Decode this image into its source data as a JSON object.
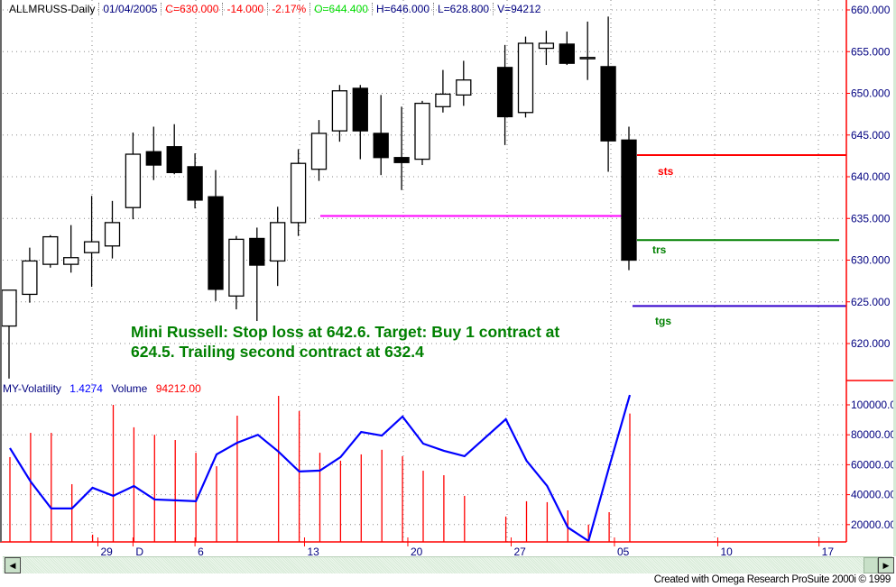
{
  "header": {
    "symbol": "ALLMRUSS-Daily",
    "date": "01/04/2005",
    "close": "C=630.000",
    "change": "-14.000",
    "change_pct": "-2.17%",
    "open": "O=644.400",
    "high": "H=646.000",
    "low": "L=628.800",
    "volume": "V=94212"
  },
  "subpanel": {
    "indicator_name": "MY-Volatility",
    "indicator_value": "1.4274",
    "volume_name": "Volume",
    "volume_value": "94212.00"
  },
  "annotation": {
    "line1": "Mini Russell: Stop loss at 642.6. Target: Buy 1 contract at",
    "line2": "624.5. Trailing second contract at 632.4"
  },
  "level_labels": {
    "sts": "sts",
    "trs": "trs",
    "tgs": "tgs"
  },
  "credit": "Created with Omega Research ProSuite 2000i © 1999",
  "colors": {
    "axis": "#ff0000",
    "axis_text": "#000080",
    "note": "#008000",
    "stop": "#ff0000",
    "trail": "#008000",
    "target": "#3300cc",
    "entry_line": "#ff00ff",
    "volume": "#ff0000",
    "volatility": "#0000ff",
    "open_text": "#00dd00"
  },
  "chart_data": [
    {
      "type": "candlestick",
      "ylim": [
        620,
        660
      ],
      "yticks": [
        "660.000",
        "655.000",
        "650.000",
        "645.000",
        "640.000",
        "635.000",
        "630.000",
        "625.000",
        "620.000"
      ],
      "xticks": [
        "29",
        "D",
        "6",
        "13",
        "20",
        "27",
        "05",
        "10",
        "17"
      ],
      "grid": true,
      "candles": [
        [
          622.1,
          626.4,
          615.8,
          626.4
        ],
        [
          625.9,
          631.5,
          624.9,
          629.9
        ],
        [
          629.5,
          633.0,
          629.1,
          632.8
        ],
        [
          629.5,
          634.2,
          628.5,
          630.3
        ],
        [
          630.9,
          637.7,
          626.8,
          632.2
        ],
        [
          631.7,
          637.1,
          630.2,
          634.5
        ],
        [
          636.3,
          645.3,
          634.9,
          642.7
        ],
        [
          643.0,
          646.0,
          639.6,
          641.4
        ],
        [
          643.6,
          646.3,
          640.3,
          640.5
        ],
        [
          641.2,
          642.8,
          636.2,
          637.2
        ],
        [
          637.6,
          640.8,
          625.1,
          626.5
        ],
        [
          625.7,
          632.9,
          624.1,
          632.5
        ],
        [
          632.6,
          633.9,
          622.7,
          629.4
        ],
        [
          629.9,
          636.4,
          626.9,
          634.5
        ],
        [
          634.5,
          643.3,
          632.9,
          641.6
        ],
        [
          640.9,
          646.8,
          639.5,
          645.2
        ],
        [
          645.5,
          651.0,
          644.2,
          650.3
        ],
        [
          650.6,
          651.0,
          642.1,
          645.5
        ],
        [
          645.2,
          649.8,
          640.2,
          642.3
        ],
        [
          642.3,
          648.4,
          638.4,
          641.7
        ],
        [
          642.1,
          649.1,
          641.4,
          648.8
        ],
        [
          648.4,
          652.8,
          647.7,
          649.9
        ],
        [
          649.8,
          653.9,
          648.5,
          651.6
        ],
        null,
        [
          653.1,
          655.8,
          643.8,
          647.2
        ],
        [
          647.7,
          656.8,
          647.1,
          656.0
        ],
        [
          655.4,
          657.5,
          653.4,
          656.0
        ],
        [
          655.9,
          657.4,
          653.4,
          653.6
        ],
        [
          654.3,
          658.6,
          651.6,
          654.3
        ],
        [
          653.2,
          659.2,
          640.6,
          644.3
        ],
        [
          644.4,
          646.0,
          628.8,
          630.0
        ]
      ],
      "candle_fields": [
        "open",
        "high",
        "low",
        "close"
      ],
      "levels": [
        {
          "label": "sts",
          "value": 642.6
        },
        {
          "label": "trs",
          "value": 632.4
        },
        {
          "label": "tgs",
          "value": 624.5
        },
        {
          "label": "",
          "value": 635.3
        }
      ]
    },
    {
      "type": "bar+line",
      "ylim": [
        8000,
        110000
      ],
      "yticks": [
        "100000.00",
        "80000.00",
        "60000.00",
        "40000.00",
        "20000.00"
      ],
      "series": [
        {
          "name": "Volume",
          "type": "bar",
          "values": [
            65100,
            81300,
            81300,
            47000,
            13300,
            100000,
            85000,
            80000,
            76500,
            68000,
            59000,
            92800,
            null,
            106000,
            95800,
            68000,
            62700,
            66900,
            70000,
            65700,
            56000,
            53000,
            39200,
            null,
            25400,
            35600,
            35000,
            29500,
            20000,
            28300,
            94212
          ]
        },
        {
          "name": "MY-Volatility",
          "type": "line",
          "values": [
            71100,
            48800,
            30800,
            30800,
            44600,
            39200,
            45800,
            36800,
            36200,
            35600,
            66900,
            74700,
            80000,
            68700,
            55500,
            56100,
            65100,
            81900,
            79500,
            92200,
            74100,
            69300,
            65700,
            null,
            90400,
            62700,
            45800,
            18100,
            9000,
            58500,
            106600
          ]
        }
      ]
    }
  ]
}
